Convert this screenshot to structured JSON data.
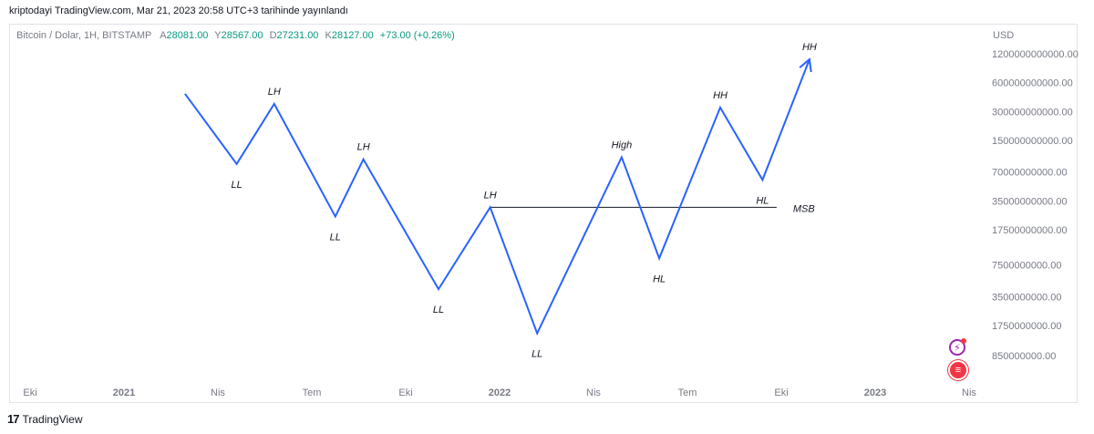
{
  "header": {
    "published": "kriptodayi TradingView.com, Mar 21, 2023 20:58 UTC+3 tarihinde yayınlandı"
  },
  "legend": {
    "symbol": "Bitcoin / Dolar, 1H, BITSTAMP",
    "a_label": "A",
    "a_value": "28081.00",
    "y_label": "Y",
    "y_value": "28567.00",
    "d_label": "D",
    "d_value": "27231.00",
    "k_label": "K",
    "k_value": "28127.00",
    "change": "+73.00 (+0.26%)"
  },
  "currency": "USD",
  "footer": {
    "brand_mark": "17",
    "brand": "TradingView"
  },
  "icons": {
    "alert": "lightning-icon",
    "flag": "us-flag-icon"
  },
  "chart_data": {
    "type": "line",
    "y_scale": "log",
    "x_ticks": [
      "Eki",
      "2021",
      "Nis",
      "Tem",
      "Eki",
      "2022",
      "Nis",
      "Tem",
      "Eki",
      "2023",
      "Nis"
    ],
    "y_ticks": [
      "1200000000000.00",
      "600000000000.00",
      "300000000000.00",
      "150000000000.00",
      "70000000000.00",
      "35000000000.00",
      "17500000000.00",
      "7500000000.00",
      "3500000000.00",
      "1750000000.00",
      "850000000.00"
    ],
    "y_tick_values": [
      1200000000000,
      600000000000,
      300000000000,
      150000000000,
      70000000000,
      35000000000,
      17500000000,
      7500000000,
      3500000000,
      1750000000,
      850000000
    ],
    "series": [
      {
        "points": [
          {
            "x": 1.65,
            "y": 460000000000,
            "label": ""
          },
          {
            "x": 2.2,
            "y": 85000000000,
            "label": "LL"
          },
          {
            "x": 2.6,
            "y": 360000000000,
            "label": "LH"
          },
          {
            "x": 3.25,
            "y": 24000000000,
            "label": "LL"
          },
          {
            "x": 3.55,
            "y": 95000000000,
            "label": "LH"
          },
          {
            "x": 4.35,
            "y": 4200000000,
            "label": "LL"
          },
          {
            "x": 4.9,
            "y": 30000000000,
            "label": "LH"
          },
          {
            "x": 5.4,
            "y": 1450000000,
            "label": "LL"
          },
          {
            "x": 6.3,
            "y": 100000000000,
            "label": "High"
          },
          {
            "x": 6.7,
            "y": 8800000000,
            "label": "HL"
          },
          {
            "x": 7.35,
            "y": 330000000000,
            "label": "HH"
          },
          {
            "x": 7.8,
            "y": 58000000000,
            "label": "HL"
          },
          {
            "x": 8.3,
            "y": 1050000000000,
            "label": "HH"
          }
        ]
      }
    ],
    "annotations": [
      {
        "type": "hline",
        "label": "MSB",
        "y": 30000000000,
        "x_start": 4.9,
        "x_end": 7.95
      }
    ],
    "grid": false
  }
}
